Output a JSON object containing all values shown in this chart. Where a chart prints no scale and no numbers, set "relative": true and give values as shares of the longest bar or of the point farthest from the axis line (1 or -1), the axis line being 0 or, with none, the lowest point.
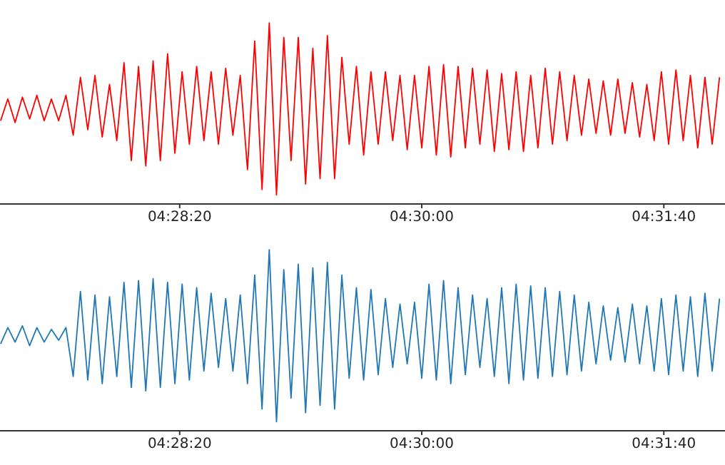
{
  "chart_data": [
    {
      "type": "line",
      "relative": true,
      "xlim": [
        4.4516,
        4.5348
      ],
      "xticks": [
        {
          "value": 4.47222,
          "label": "04:28:20"
        },
        {
          "value": 4.5,
          "label": "04:30:00"
        },
        {
          "value": 4.52778,
          "label": "04:31:40"
        }
      ],
      "x": [
        4.45167,
        4.4525,
        4.45333,
        4.45417,
        4.455,
        4.45583,
        4.45667,
        4.4575,
        4.45833,
        4.45917,
        4.46,
        4.46083,
        4.46167,
        4.4625,
        4.46333,
        4.46417,
        4.465,
        4.46583,
        4.46667,
        4.4675,
        4.46833,
        4.46917,
        4.47,
        4.47083,
        4.47167,
        4.4725,
        4.47333,
        4.47417,
        4.475,
        4.47583,
        4.47667,
        4.4775,
        4.47833,
        4.47917,
        4.48,
        4.48083,
        4.48167,
        4.4825,
        4.48333,
        4.48417,
        4.485,
        4.48583,
        4.48667,
        4.4875,
        4.48833,
        4.48917,
        4.49,
        4.49083,
        4.49167,
        4.4925,
        4.49333,
        4.49417,
        4.495,
        4.49583,
        4.49667,
        4.4975,
        4.49833,
        4.49917,
        4.5,
        4.50083,
        4.50167,
        4.5025,
        4.50333,
        4.50417,
        4.505,
        4.50583,
        4.50667,
        4.5075,
        4.50833,
        4.50917,
        4.51,
        4.51083,
        4.51167,
        4.5125,
        4.51333,
        4.51417,
        4.515,
        4.51583,
        4.51667,
        4.5175,
        4.51833,
        4.51917,
        4.52,
        4.52083,
        4.52167,
        4.5225,
        4.52333,
        4.52417,
        4.525,
        4.52583,
        4.52667,
        4.5275,
        4.52833,
        4.52917,
        4.53,
        4.53083,
        4.53167,
        4.5325,
        4.53333,
        4.53417
      ],
      "series": [
        {
          "color": "#ff0000",
          "values": [
            0.46,
            0.58,
            0.45,
            0.59,
            0.47,
            0.6,
            0.46,
            0.58,
            0.46,
            0.6,
            0.38,
            0.7,
            0.41,
            0.71,
            0.37,
            0.66,
            0.35,
            0.78,
            0.24,
            0.76,
            0.21,
            0.79,
            0.24,
            0.83,
            0.28,
            0.73,
            0.33,
            0.76,
            0.35,
            0.73,
            0.33,
            0.75,
            0.38,
            0.71,
            0.19,
            0.9,
            0.08,
            1,
            0.05,
            0.92,
            0.24,
            0.92,
            0.11,
            0.86,
            0.14,
            0.93,
            0.14,
            0.81,
            0.33,
            0.76,
            0.27,
            0.73,
            0.33,
            0.73,
            0.35,
            0.71,
            0.3,
            0.71,
            0.31,
            0.76,
            0.27,
            0.77,
            0.26,
            0.76,
            0.31,
            0.75,
            0.33,
            0.74,
            0.29,
            0.72,
            0.3,
            0.73,
            0.29,
            0.71,
            0.31,
            0.75,
            0.33,
            0.73,
            0.35,
            0.71,
            0.38,
            0.69,
            0.39,
            0.68,
            0.38,
            0.69,
            0.39,
            0.67,
            0.37,
            0.66,
            0.35,
            0.73,
            0.33,
            0.74,
            0.35,
            0.71,
            0.31,
            0.7,
            0.33,
            0.7
          ]
        }
      ]
    },
    {
      "type": "line",
      "relative": true,
      "xlim": [
        4.4516,
        4.5348
      ],
      "xticks": [
        {
          "value": 4.47222,
          "label": "04:28:20"
        },
        {
          "value": 4.5,
          "label": "04:30:00"
        },
        {
          "value": 4.52778,
          "label": "04:31:40"
        }
      ],
      "x": [
        4.45167,
        4.4525,
        4.45333,
        4.45417,
        4.455,
        4.45583,
        4.45667,
        4.4575,
        4.45833,
        4.45917,
        4.46,
        4.46083,
        4.46167,
        4.4625,
        4.46333,
        4.46417,
        4.465,
        4.46583,
        4.46667,
        4.4675,
        4.46833,
        4.46917,
        4.47,
        4.47083,
        4.47167,
        4.4725,
        4.47333,
        4.47417,
        4.475,
        4.47583,
        4.47667,
        4.4775,
        4.47833,
        4.47917,
        4.48,
        4.48083,
        4.48167,
        4.4825,
        4.48333,
        4.48417,
        4.485,
        4.48583,
        4.48667,
        4.4875,
        4.48833,
        4.48917,
        4.49,
        4.49083,
        4.49167,
        4.4925,
        4.49333,
        4.49417,
        4.495,
        4.49583,
        4.49667,
        4.4975,
        4.49833,
        4.49917,
        4.5,
        4.50083,
        4.50167,
        4.5025,
        4.50333,
        4.50417,
        4.505,
        4.50583,
        4.50667,
        4.5075,
        4.50833,
        4.50917,
        4.51,
        4.51083,
        4.51167,
        4.5125,
        4.51333,
        4.51417,
        4.515,
        4.51583,
        4.51667,
        4.5175,
        4.51833,
        4.51917,
        4.52,
        4.52083,
        4.52167,
        4.5225,
        4.52333,
        4.52417,
        4.525,
        4.52583,
        4.52667,
        4.5275,
        4.52833,
        4.52917,
        4.53,
        4.53083,
        4.53167,
        4.5325,
        4.53333,
        4.53417
      ],
      "series": [
        {
          "color": "#1f77b4",
          "values": [
            0.48,
            0.57,
            0.49,
            0.58,
            0.47,
            0.57,
            0.49,
            0.56,
            0.5,
            0.57,
            0.3,
            0.77,
            0.28,
            0.75,
            0.26,
            0.74,
            0.3,
            0.82,
            0.24,
            0.83,
            0.22,
            0.84,
            0.24,
            0.82,
            0.26,
            0.81,
            0.28,
            0.79,
            0.33,
            0.76,
            0.35,
            0.73,
            0.33,
            0.75,
            0.26,
            0.86,
            0.12,
            1,
            0.05,
            0.89,
            0.18,
            0.92,
            0.1,
            0.9,
            0.14,
            0.93,
            0.12,
            0.86,
            0.29,
            0.79,
            0.28,
            0.78,
            0.31,
            0.73,
            0.35,
            0.7,
            0.37,
            0.71,
            0.29,
            0.81,
            0.28,
            0.83,
            0.26,
            0.79,
            0.31,
            0.75,
            0.35,
            0.73,
            0.3,
            0.79,
            0.26,
            0.81,
            0.28,
            0.8,
            0.29,
            0.79,
            0.3,
            0.77,
            0.31,
            0.75,
            0.33,
            0.71,
            0.37,
            0.69,
            0.39,
            0.68,
            0.38,
            0.7,
            0.37,
            0.69,
            0.33,
            0.73,
            0.31,
            0.75,
            0.33,
            0.74,
            0.3,
            0.76,
            0.33,
            0.73
          ]
        }
      ]
    }
  ]
}
